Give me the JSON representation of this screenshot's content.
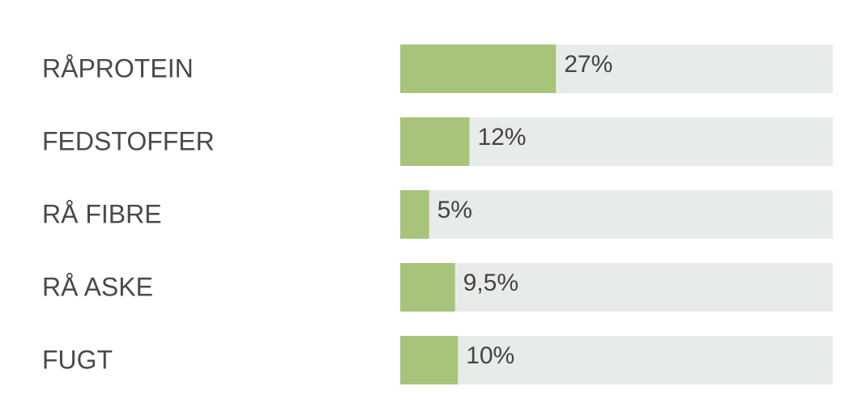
{
  "chart_data": {
    "type": "bar",
    "categories": [
      "RÅPROTEIN",
      "FEDSTOFFER",
      "RÅ FIBRE",
      "RÅ ASKE",
      "FUGT"
    ],
    "values": [
      27,
      12,
      5,
      9.5,
      10
    ],
    "value_labels": [
      "27%",
      "12%",
      "5%",
      "9,5%",
      "10%"
    ],
    "color": "#a8c47a",
    "xlim": [
      0,
      75
    ]
  }
}
